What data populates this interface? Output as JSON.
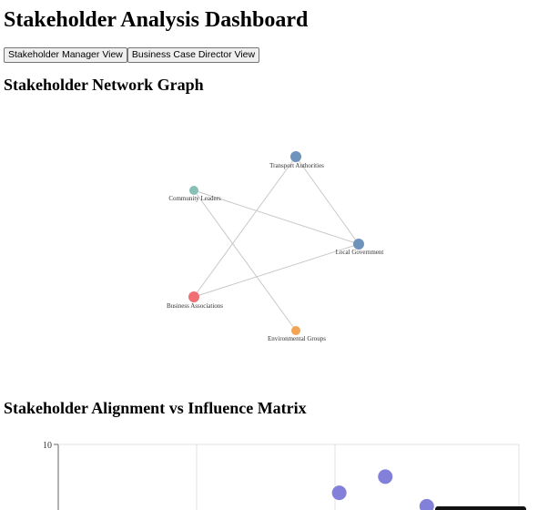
{
  "page": {
    "title": "Stakeholder Analysis Dashboard"
  },
  "views": {
    "manager_label": "Stakeholder Manager View",
    "director_label": "Business Case Director View"
  },
  "network": {
    "heading": "Stakeholder Network Graph",
    "nodes": [
      {
        "id": "transport",
        "label": "Transport Authorities",
        "color": "#6f93ba"
      },
      {
        "id": "community",
        "label": "Community Leaders",
        "color": "#86c0b7"
      },
      {
        "id": "local_gov",
        "label": "Local Government",
        "color": "#6f93ba"
      },
      {
        "id": "business",
        "label": "Business Associations",
        "color": "#ef6f73"
      },
      {
        "id": "environment",
        "label": "Environmental Groups",
        "color": "#f3a455"
      }
    ],
    "edges": [
      {
        "source": "transport",
        "target": "local_gov"
      },
      {
        "source": "transport",
        "target": "business"
      },
      {
        "source": "community",
        "target": "local_gov"
      },
      {
        "source": "community",
        "target": "environment"
      },
      {
        "source": "business",
        "target": "local_gov"
      }
    ],
    "edge_color": "#c8c8c8"
  },
  "matrix": {
    "heading": "Stakeholder Alignment vs Influence Matrix",
    "y_tick_top": "10",
    "point_color": "#8280d8"
  },
  "chart_data": {
    "type": "scatter",
    "title": "Stakeholder Alignment vs Influence Matrix",
    "y_ticks": [
      "10"
    ],
    "points": [
      {
        "x": 6.1,
        "y": 8.2
      },
      {
        "x": 7.1,
        "y": 8.8
      },
      {
        "x": 8.0,
        "y": 7.7
      }
    ]
  }
}
